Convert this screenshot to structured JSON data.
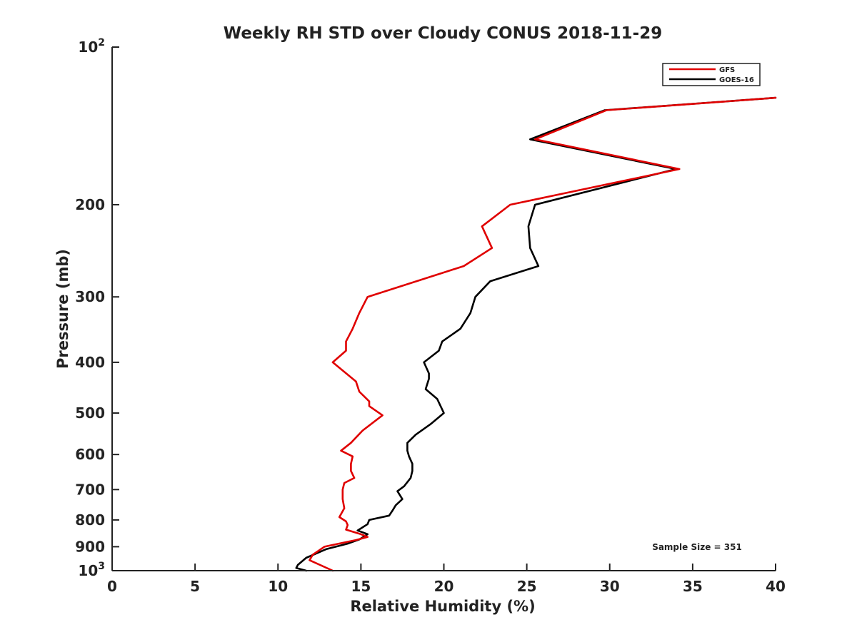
{
  "chart_data": {
    "type": "line",
    "title": "Weekly RH STD over Cloudy CONUS 2018-11-29",
    "xlabel": "Relative Humidity (%)",
    "ylabel": "Pressure (mb)",
    "xlim": [
      0,
      40
    ],
    "ylim": [
      100,
      1000
    ],
    "y_scale": "log",
    "y_reversed": true,
    "grid": false,
    "legend_position": "top-right",
    "x_ticks": [
      0,
      5,
      10,
      15,
      20,
      25,
      30,
      35,
      40
    ],
    "y_ticks": [
      {
        "value": 100,
        "label": "10",
        "sup": "2"
      },
      {
        "value": 200,
        "label": "200",
        "sup": ""
      },
      {
        "value": 300,
        "label": "300",
        "sup": ""
      },
      {
        "value": 400,
        "label": "400",
        "sup": ""
      },
      {
        "value": 500,
        "label": "500",
        "sup": ""
      },
      {
        "value": 600,
        "label": "600",
        "sup": ""
      },
      {
        "value": 700,
        "label": "700",
        "sup": ""
      },
      {
        "value": 800,
        "label": "800",
        "sup": ""
      },
      {
        "value": 900,
        "label": "900",
        "sup": ""
      },
      {
        "value": 1000,
        "label": "10",
        "sup": "3"
      }
    ],
    "annotation": "Sample Size = 351",
    "series": [
      {
        "name": "GFS",
        "color": "#e00000",
        "points": [
          [
            40,
            125
          ],
          [
            29.8,
            132
          ],
          [
            25.5,
            150
          ],
          [
            34.2,
            171
          ],
          [
            24.0,
            200
          ],
          [
            22.3,
            220
          ],
          [
            22.9,
            242
          ],
          [
            21.2,
            262
          ],
          [
            15.4,
            300
          ],
          [
            14.9,
            322
          ],
          [
            14.5,
            345
          ],
          [
            14.1,
            365
          ],
          [
            14.1,
            380
          ],
          [
            13.3,
            400
          ],
          [
            14.7,
            435
          ],
          [
            14.9,
            455
          ],
          [
            15.5,
            475
          ],
          [
            15.5,
            485
          ],
          [
            16.3,
            505
          ],
          [
            15.1,
            540
          ],
          [
            14.4,
            570
          ],
          [
            13.8,
            590
          ],
          [
            14.5,
            605
          ],
          [
            14.4,
            625
          ],
          [
            14.4,
            645
          ],
          [
            14.6,
            665
          ],
          [
            14.0,
            680
          ],
          [
            13.9,
            700
          ],
          [
            13.9,
            730
          ],
          [
            14.0,
            760
          ],
          [
            13.7,
            790
          ],
          [
            14.1,
            805
          ],
          [
            14.2,
            818
          ],
          [
            14.1,
            835
          ],
          [
            15.0,
            852
          ],
          [
            15.4,
            862
          ],
          [
            14.7,
            874
          ],
          [
            14.1,
            882
          ],
          [
            12.8,
            900
          ],
          [
            12.1,
            932
          ],
          [
            11.9,
            955
          ],
          [
            13.3,
            1000
          ]
        ]
      },
      {
        "name": "GOES-16",
        "color": "#000000",
        "points": [
          [
            40,
            125
          ],
          [
            29.7,
            132
          ],
          [
            25.2,
            150
          ],
          [
            34.0,
            171
          ],
          [
            25.5,
            200
          ],
          [
            25.1,
            220
          ],
          [
            25.2,
            242
          ],
          [
            25.7,
            262
          ],
          [
            22.8,
            280
          ],
          [
            21.9,
            300
          ],
          [
            21.6,
            322
          ],
          [
            21.0,
            345
          ],
          [
            19.9,
            365
          ],
          [
            19.7,
            380
          ],
          [
            18.8,
            400
          ],
          [
            19.1,
            420
          ],
          [
            19.1,
            430
          ],
          [
            18.9,
            450
          ],
          [
            19.6,
            470
          ],
          [
            20.0,
            500
          ],
          [
            19.2,
            525
          ],
          [
            18.3,
            550
          ],
          [
            17.8,
            570
          ],
          [
            17.8,
            590
          ],
          [
            17.9,
            605
          ],
          [
            18.1,
            625
          ],
          [
            18.1,
            645
          ],
          [
            18.0,
            665
          ],
          [
            17.6,
            690
          ],
          [
            17.2,
            705
          ],
          [
            17.5,
            730
          ],
          [
            17.1,
            750
          ],
          [
            16.9,
            768
          ],
          [
            16.7,
            785
          ],
          [
            15.5,
            800
          ],
          [
            15.4,
            815
          ],
          [
            14.8,
            838
          ],
          [
            15.4,
            852
          ],
          [
            14.9,
            872
          ],
          [
            14.2,
            888
          ],
          [
            12.9,
            910
          ],
          [
            11.7,
            945
          ],
          [
            11.2,
            975
          ],
          [
            11.1,
            988
          ],
          [
            11.7,
            1000
          ]
        ]
      }
    ]
  }
}
